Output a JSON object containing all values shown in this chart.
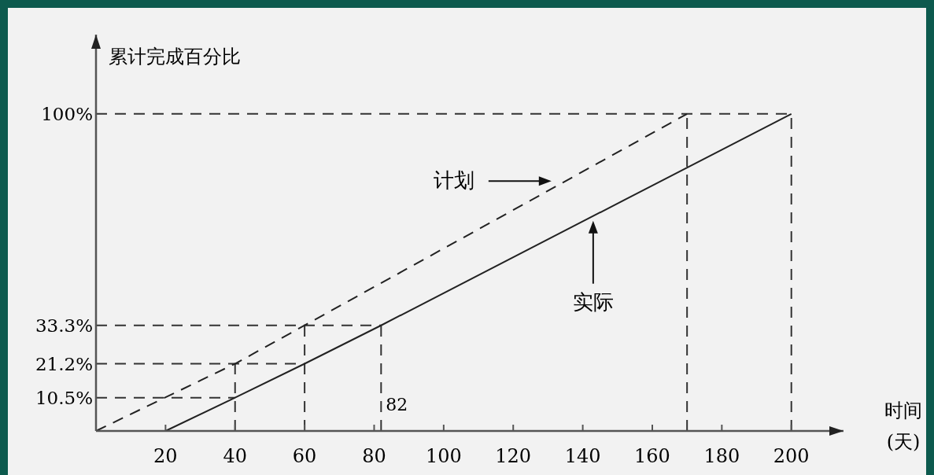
{
  "chart_data": {
    "type": "line",
    "ylabel": "累计完成百分比",
    "xlabel": "时间\n(天)",
    "xlim": [
      0,
      215
    ],
    "ylim": [
      0,
      125
    ],
    "xticks": [
      20,
      40,
      60,
      80,
      100,
      120,
      140,
      160,
      180,
      200
    ],
    "yticks": [
      {
        "value": 10.5,
        "label": "10.5%"
      },
      {
        "value": 21.2,
        "label": "21.2%"
      },
      {
        "value": 33.3,
        "label": "33.3%"
      },
      {
        "value": 100,
        "label": "100%"
      }
    ],
    "series": [
      {
        "name": "计划",
        "color": "#222222",
        "line_style": "dashed",
        "x": [
          0,
          40,
          60,
          170
        ],
        "values": [
          0,
          21.2,
          33.3,
          100
        ]
      },
      {
        "name": "实际",
        "color": "#222222",
        "line_style": "solid",
        "x": [
          20,
          40,
          60,
          82,
          200
        ],
        "values": [
          0,
          10.5,
          21.2,
          33.3,
          100
        ]
      }
    ],
    "ref_lines": [
      {
        "axis": "y",
        "value": 10.5,
        "color": "#333333",
        "line_style": "dashed"
      },
      {
        "axis": "y",
        "value": 21.2,
        "color": "#333333",
        "line_style": "dashed"
      },
      {
        "axis": "y",
        "value": 33.3,
        "color": "#333333",
        "line_style": "dashed"
      },
      {
        "axis": "y",
        "value": 100,
        "color": "#333333",
        "line_style": "dashed"
      },
      {
        "axis": "x",
        "value": 40,
        "color": "#333333",
        "line_style": "dashed"
      },
      {
        "axis": "x",
        "value": 60,
        "color": "#333333",
        "line_style": "dashed"
      },
      {
        "axis": "x",
        "value": 82,
        "label": "82",
        "color": "#333333",
        "line_style": "dashed"
      },
      {
        "axis": "x",
        "value": 170,
        "color": "#333333",
        "line_style": "dashed"
      },
      {
        "axis": "x",
        "value": 200,
        "color": "#333333",
        "line_style": "dashed"
      }
    ],
    "grid": false
  }
}
